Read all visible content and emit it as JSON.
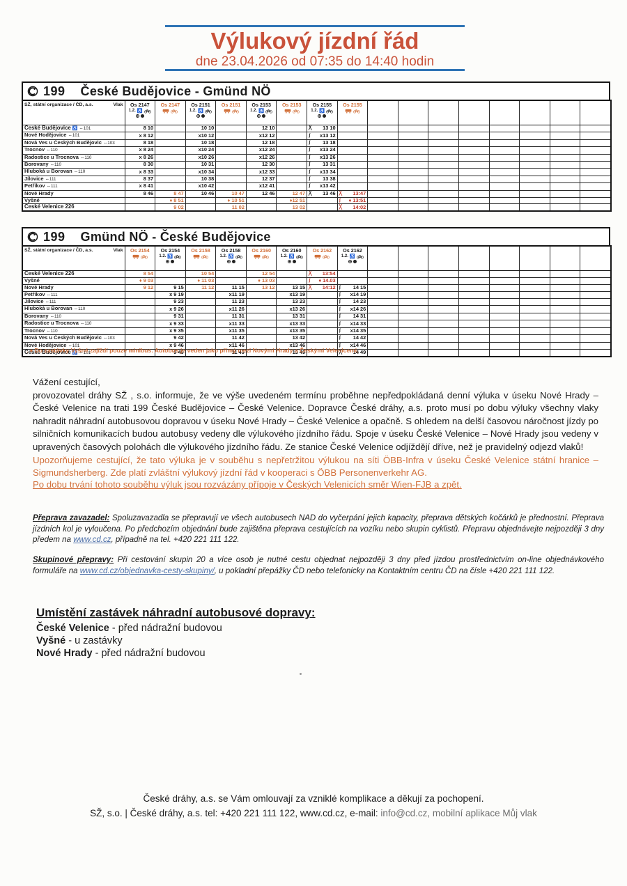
{
  "header": {
    "title": "Výlukový jízdní řád",
    "subtitle": "dne 23.04.2026 od 07:35 do 14:40 hodin"
  },
  "colors": {
    "accent_orange": "#d2703a",
    "stamp_red": "#c23728",
    "title_red": "#c9523a",
    "border_blue": "#2f74b5",
    "link_blue": "#4a6da7"
  },
  "tables": [
    {
      "line": "199",
      "route": "České Budějovice - Gmünd NÖ",
      "operator": "SŽ, státní organizace / ČD, a.s.",
      "vlak_label": "Vlak",
      "empty_columns": 8,
      "columns": [
        {
          "train": "Os 2147",
          "kind": "train",
          "class_label": "1.2.",
          "icons": [
            "wheelchair-icon",
            "bicycle-icon"
          ],
          "icons_row2": [
            "circle-icon",
            "device-icon"
          ]
        },
        {
          "train": "Os 2147",
          "kind": "bus",
          "icons": [
            "bus-icon",
            "bicycle-icon"
          ]
        },
        {
          "train": "Os 2151",
          "kind": "train",
          "class_label": "1.2.",
          "icons": [
            "wheelchair-icon",
            "bicycle-icon"
          ],
          "icons_row2": [
            "circle-icon",
            "device-icon"
          ]
        },
        {
          "train": "Os 2151",
          "kind": "bus",
          "icons": [
            "bus-icon",
            "bicycle-icon"
          ]
        },
        {
          "train": "Os 2153",
          "kind": "train",
          "class_label": "1.2.",
          "icons": [
            "wheelchair-icon",
            "bicycle-icon"
          ],
          "icons_row2": [
            "circle-icon",
            "device-icon"
          ]
        },
        {
          "train": "Os 2153",
          "kind": "bus",
          "icons": [
            "bus-icon",
            "bicycle-icon"
          ]
        },
        {
          "train": "Os 2155",
          "kind": "train",
          "class_label": "1.2.",
          "icons": [
            "wheelchair-icon",
            "bicycle-icon"
          ],
          "icons_row2": [
            "circle-icon",
            "device-icon"
          ]
        },
        {
          "train": "Os 2155",
          "kind": "bus",
          "stamp": true,
          "icons": [
            "bus-icon",
            "bicycle-icon"
          ]
        }
      ],
      "rows": [
        {
          "station": "České Budějovice",
          "suffix": "♿ ⇔101",
          "bold": true,
          "times": [
            "8 10",
            "",
            "10 10",
            "",
            "12 10",
            "",
            "╳|13 10",
            ""
          ]
        },
        {
          "station": "Nové Hodějovice",
          "suffix": "⇔101",
          "times": [
            "x 8 12",
            "",
            "x10 12",
            "",
            "x12 12",
            "",
            "ʃ|x13 12",
            ""
          ]
        },
        {
          "station": "Nová Ves u Českých Budějovic",
          "suffix": "⇔103",
          "times": [
            "8 18",
            "",
            "10 18",
            "",
            "12 18",
            "",
            "ʃ|13 18",
            ""
          ]
        },
        {
          "station": "Trocnov",
          "suffix": "⇔110",
          "times": [
            "x 8 24",
            "",
            "x10 24",
            "",
            "x12 24",
            "",
            "ʃ|x13 24",
            ""
          ]
        },
        {
          "station": "Radostice u Trocnova",
          "suffix": "⇔110",
          "times": [
            "x 8 26",
            "",
            "x10 26",
            "",
            "x12 26",
            "",
            "ʃ|x13 26",
            ""
          ]
        },
        {
          "station": "Borovany",
          "suffix": "⇔110",
          "times": [
            "8 30",
            "",
            "10 31",
            "",
            "12 30",
            "",
            "ʃ|13 31",
            ""
          ]
        },
        {
          "station": "Hluboká u Borovan",
          "suffix": "⇔110",
          "times": [
            "x 8 33",
            "",
            "x10 34",
            "",
            "x12 33",
            "",
            "ʃ|x13 34",
            ""
          ]
        },
        {
          "station": "Jílovice",
          "suffix": "⇔111",
          "times": [
            "8 37",
            "",
            "10 38",
            "",
            "12 37",
            "",
            "ʃ|13 38",
            ""
          ]
        },
        {
          "station": "Petříkov",
          "suffix": "⇔111",
          "times": [
            "x 8 41",
            "",
            "x10 42",
            "",
            "x12 41",
            "",
            "ʃ|x13 42",
            ""
          ]
        },
        {
          "station": "Nové Hrady",
          "suffix": "",
          "times": [
            "8 46",
            "8 47",
            "10 46",
            "10 47",
            "12 46",
            "12 47",
            "╳|13 46",
            "╳|13:47"
          ]
        },
        {
          "station": "Vyšné",
          "suffix": "",
          "times": [
            "",
            "♦ 8 51",
            "",
            "♦ 10 51",
            "",
            "♦12 51",
            "",
            "ʃ|♦ 13:51"
          ]
        },
        {
          "station": "České Velenice 226",
          "suffix": "",
          "bold": true,
          "times": [
            "",
            "9 02",
            "",
            "11 02",
            "",
            "13 02",
            "",
            "╳|14:02"
          ]
        }
      ]
    },
    {
      "line": "199",
      "route": "Gmünd NÖ - České Budějovice",
      "operator": "SŽ, státní organizace / ČD, a.s.",
      "vlak_label": "Vlak",
      "empty_columns": 8,
      "columns": [
        {
          "train": "Os 2154",
          "kind": "bus",
          "icons": [
            "bus-icon",
            "bicycle-icon"
          ]
        },
        {
          "train": "Os 2154",
          "kind": "train",
          "class_label": "1.2.",
          "icons": [
            "wheelchair-icon",
            "bicycle-icon"
          ],
          "icons_row2": [
            "circle-icon",
            "device-icon"
          ]
        },
        {
          "train": "Os 2158",
          "kind": "bus",
          "icons": [
            "bus-icon",
            "bicycle-icon"
          ]
        },
        {
          "train": "Os 2158",
          "kind": "train",
          "class_label": "1.2.",
          "icons": [
            "wheelchair-icon",
            "bicycle-icon"
          ],
          "icons_row2": [
            "circle-icon",
            "device-icon"
          ]
        },
        {
          "train": "Os 2160",
          "kind": "bus",
          "icons": [
            "bus-icon",
            "bicycle-icon"
          ]
        },
        {
          "train": "Os 2160",
          "kind": "train",
          "class_label": "1.2.",
          "icons": [
            "wheelchair-icon",
            "bicycle-icon"
          ],
          "icons_row2": [
            "circle-icon",
            "device-icon"
          ]
        },
        {
          "train": "Os 2162",
          "kind": "bus",
          "stamp": true,
          "icons": [
            "bus-icon",
            "bicycle-icon"
          ]
        },
        {
          "train": "Os 2162",
          "kind": "train",
          "class_label": "1.2.",
          "icons": [
            "wheelchair-icon",
            "bicycle-icon"
          ],
          "icons_row2": [
            "circle-icon",
            "device-icon"
          ]
        }
      ],
      "rows": [
        {
          "station": "České Velenice 226",
          "suffix": "",
          "bold": true,
          "times": [
            "8 54",
            "",
            "10 54",
            "",
            "12 54",
            "",
            "╳|13:54",
            ""
          ]
        },
        {
          "station": "Vyšné",
          "suffix": "",
          "times": [
            "♦ 9 03",
            "",
            "♦ 11 03",
            "",
            "♦ 13 03",
            "",
            "ʃ|♦ 14.03",
            ""
          ]
        },
        {
          "station": "Nové Hrady",
          "suffix": "",
          "times": [
            "9 12",
            "9 15",
            "11 12",
            "11 15",
            "13 12",
            "13 15",
            "╳|14:12",
            "ʃ|14 15"
          ]
        },
        {
          "station": "Petříkov",
          "suffix": "⇔111",
          "times": [
            "",
            "x 9 19",
            "",
            "x11 19",
            "",
            "x13 19",
            "",
            "ʃ|x14 19"
          ]
        },
        {
          "station": "Jílovice",
          "suffix": "⇔111",
          "times": [
            "",
            "9 23",
            "",
            "11 23",
            "",
            "13 23",
            "",
            "ʃ|14 23"
          ]
        },
        {
          "station": "Hluboká u Borovan",
          "suffix": "⇔110",
          "times": [
            "",
            "x 9 26",
            "",
            "x11 26",
            "",
            "x13 26",
            "",
            "ʃ|x14 26"
          ]
        },
        {
          "station": "Borovany",
          "suffix": "⇔110",
          "times": [
            "",
            "9 31",
            "",
            "11 31",
            "",
            "13 31",
            "",
            "ʃ|14 31"
          ]
        },
        {
          "station": "Radostice u Trocnova",
          "suffix": "⇔110",
          "times": [
            "",
            "x 9 33",
            "",
            "x11 33",
            "",
            "x13 33",
            "",
            "ʃ|x14 33"
          ]
        },
        {
          "station": "Trocnov",
          "suffix": "⇔110",
          "times": [
            "",
            "x 9 35",
            "",
            "x11 35",
            "",
            "x13 35",
            "",
            "ʃ|x14 35"
          ]
        },
        {
          "station": "Nová Ves u Českých Budějovic",
          "suffix": "⇔103",
          "times": [
            "",
            "9 42",
            "",
            "11 42",
            "",
            "13 42",
            "",
            "ʃ|14 42"
          ]
        },
        {
          "station": "Nové Hodějovice",
          "suffix": "⇔101",
          "times": [
            "",
            "x 9 46",
            "",
            "x11 46",
            "",
            "x13 46",
            "",
            "ʃ|x14 46"
          ]
        },
        {
          "station": "České Budějovice",
          "suffix": "♿ ⇔101",
          "bold": true,
          "times": [
            "",
            "9 49",
            "",
            "11 49",
            "",
            "13 49",
            "",
            "╳|14 49"
          ]
        }
      ]
    }
  ],
  "footnote": ". ♦  Do zastávky Vyšné zajíždí pouze minibus. Autobus je veden jako přímý mezi Novými Hrady a Českými Velenicemi.",
  "paragraphs": {
    "salutation": "Vážení cestující,",
    "body": "provozovatel dráhy SŽ , s.o. informuje, že ve výše uvedeném termínu  proběhne nepředpokládaná denní výluka v úseku Nové Hrady – České Velenice na trati 199 České Budějovice – České Velenice. Dopravce České dráhy, a.s. proto musí po dobu výluky všechny vlaky nahradit náhradní autobusovou dopravou v úseku Nové Hrady – České Velenice a opačně. S ohledem na delší časovou náročnost jízdy po silničních komunikacích budou autobusy vedeny dle výlukového jízdního řádu. Spoje v úseku České Velenice – Nové Hrady jsou vedeny v upravených časových polohách dle výlukového jízdního řádu. Ze stanice České Velenice odjíždějí dříve, než je pravidelný odjezd vlaků!",
    "warning": "Upozorňujeme cestující, že tato výluka je v souběhu s nepřetržitou výlukou na síti ÖBB-Infra v úseku České Velenice státní hranice – Sigmundsherberg. Zde platí zvláštní výlukový jízdní řád v kooperaci s ÖBB Personenverkehr AG.",
    "warning_underline": "Po dobu trvání tohoto souběhu výluk jsou rozvázány přípoje v Českých Velenicích směr Wien-FJB a zpět.",
    "luggage_label": "Přeprava zavazadel:",
    "luggage_text_1": " Spoluzavazadla se přepravují ve všech autobusech NAD do vyčerpání jejich kapacity, přeprava dětských kočárků je přednostní. Přeprava jízdních kol je vyloučena. Po předchozím objednání bude zajištěna přeprava cestujících na vozíku nebo skupin cyklistů. Přepravu objednávejte nejpozději 3 dny předem na ",
    "luggage_link": "www.cd.cz",
    "luggage_text_2": ", případně na tel. +420 221 111 122.",
    "group_label": "Skupinové přepravy:",
    "group_text_1": " Při cestování skupin 20 a více osob je nutné cestu objednat nejpozději 3 dny před jízdou prostřednictvím on-line objednávkového formuláře na ",
    "group_link": "www.cd.cz/objednavka-cesty-skupiny/",
    "group_text_2": ", u pokladní přepážky ČD nebo telefonicky na Kontaktním centru ČD na čísle +420 221 111 122."
  },
  "stops": {
    "heading": "Umístění zastávek náhradní autobusové dopravy:",
    "items": [
      {
        "name": "České Velenice",
        "desc": "- před nádražní budovou"
      },
      {
        "name": "Vyšné",
        "desc": "- u zastávky"
      },
      {
        "name": "Nové Hrady",
        "desc": "- před nádražní budovou"
      }
    ]
  },
  "footer": {
    "line1": "České dráhy, a.s. se Vám omlouvají za vzniklé komplikace a děkují za pochopení.",
    "line2": "SŽ, s.o. | České dráhy, a.s. tel: +420 221 111 122, www.cd.cz, e-mail: ",
    "line2_gray": "info@cd.cz, mobilní aplikace Můj vlak"
  }
}
